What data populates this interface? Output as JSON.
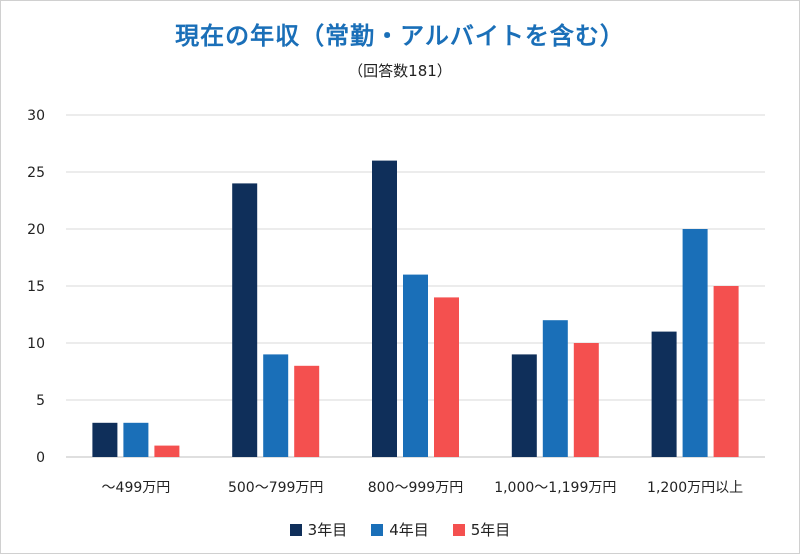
{
  "chart_data": {
    "type": "bar",
    "title": "現在の年収（常勤・アルバイトを含む）",
    "subtitle": "（回答数181）",
    "categories": [
      "～499万円",
      "500～799万円",
      "800～999万円",
      "1,000～1,199万円",
      "1,200万円以上"
    ],
    "series": [
      {
        "name": "3年目",
        "color": "#0f2f5a",
        "values": [
          3,
          24,
          26,
          9,
          11
        ]
      },
      {
        "name": "4年目",
        "color": "#1a6fb8",
        "values": [
          3,
          9,
          16,
          12,
          20
        ]
      },
      {
        "name": "5年目",
        "color": "#f4504f",
        "values": [
          1,
          8,
          14,
          10,
          15
        ]
      }
    ],
    "ylim": [
      0,
      30
    ],
    "yticks": [
      "0",
      "5",
      "10",
      "15",
      "20",
      "25",
      "30"
    ],
    "grid": true,
    "legend_position": "bottom"
  }
}
